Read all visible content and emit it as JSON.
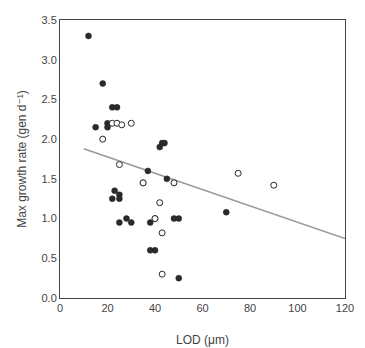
{
  "chart_data": {
    "type": "scatter",
    "xlabel": "LOD (μm)",
    "ylabel": "Max growth rate (gen d⁻¹)",
    "series": [
      {
        "type": "line",
        "color": "#999999",
        "line_style": "solid",
        "x": [
          10,
          120
        ],
        "values": [
          1.88,
          0.75
        ]
      },
      {
        "type": "scatter",
        "color": "#2a2a2a",
        "marker": "filled",
        "x": [
          12,
          15,
          18,
          20,
          20,
          22,
          22,
          23,
          24,
          25,
          25,
          25,
          28,
          30,
          35,
          37,
          38,
          38,
          40,
          40,
          42,
          43,
          44,
          45,
          48,
          50,
          50,
          70
        ],
        "values": [
          3.3,
          2.15,
          2.7,
          2.2,
          2.15,
          2.4,
          1.25,
          1.35,
          2.4,
          1.3,
          1.25,
          0.95,
          1.0,
          0.95,
          1.45,
          1.6,
          0.95,
          0.6,
          1.0,
          0.6,
          1.9,
          1.95,
          1.95,
          1.5,
          1.0,
          1.0,
          0.25,
          1.08
        ]
      },
      {
        "type": "scatter",
        "color": "#2a2a2a",
        "marker": "open",
        "x": [
          18,
          22,
          24,
          25,
          26,
          30,
          35,
          40,
          42,
          43,
          43,
          48,
          75,
          90
        ],
        "values": [
          2.0,
          2.2,
          2.2,
          1.68,
          2.18,
          2.2,
          1.45,
          1.0,
          1.2,
          0.82,
          0.3,
          1.45,
          1.57,
          1.42
        ]
      }
    ],
    "xlim": [
      0,
      120
    ],
    "ylim": [
      0,
      3.5
    ],
    "xticks": [
      0,
      20,
      40,
      60,
      80,
      100,
      120
    ],
    "yticks": [
      {
        "value": 0,
        "label": "0.0"
      },
      0.5,
      {
        "value": 1.0,
        "label": "1.0"
      },
      1.5,
      {
        "value": 2.0,
        "label": "2.0"
      },
      2.5,
      {
        "value": 3.0,
        "label": "3.0"
      },
      3.5
    ],
    "grid": false
  }
}
